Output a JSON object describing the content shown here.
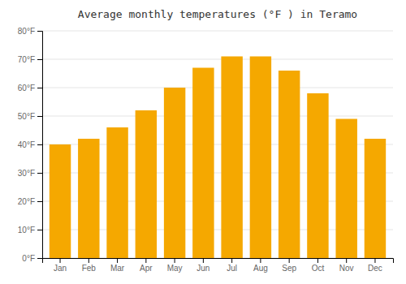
{
  "chart_data": {
    "type": "bar",
    "title": "Average monthly temperatures (°F ) in Teramo",
    "categories": [
      "Jan",
      "Feb",
      "Mar",
      "Apr",
      "May",
      "Jun",
      "Jul",
      "Aug",
      "Sep",
      "Oct",
      "Nov",
      "Dec"
    ],
    "values": [
      40,
      42,
      46,
      52,
      60,
      67,
      71,
      71,
      66,
      58,
      49,
      42
    ],
    "color": "#F5A800",
    "ylim": [
      0,
      80
    ],
    "yticks": [
      {
        "value": 0,
        "label": "0°F"
      },
      {
        "value": 10,
        "label": "10°F"
      },
      {
        "value": 20,
        "label": "20°F"
      },
      {
        "value": 30,
        "label": "30°F"
      },
      {
        "value": 40,
        "label": "40°F"
      },
      {
        "value": 50,
        "label": "50°F"
      },
      {
        "value": 60,
        "label": "60°F"
      },
      {
        "value": 70,
        "label": "70°F"
      },
      {
        "value": 80,
        "label": "80°F"
      }
    ],
    "grid": true
  }
}
